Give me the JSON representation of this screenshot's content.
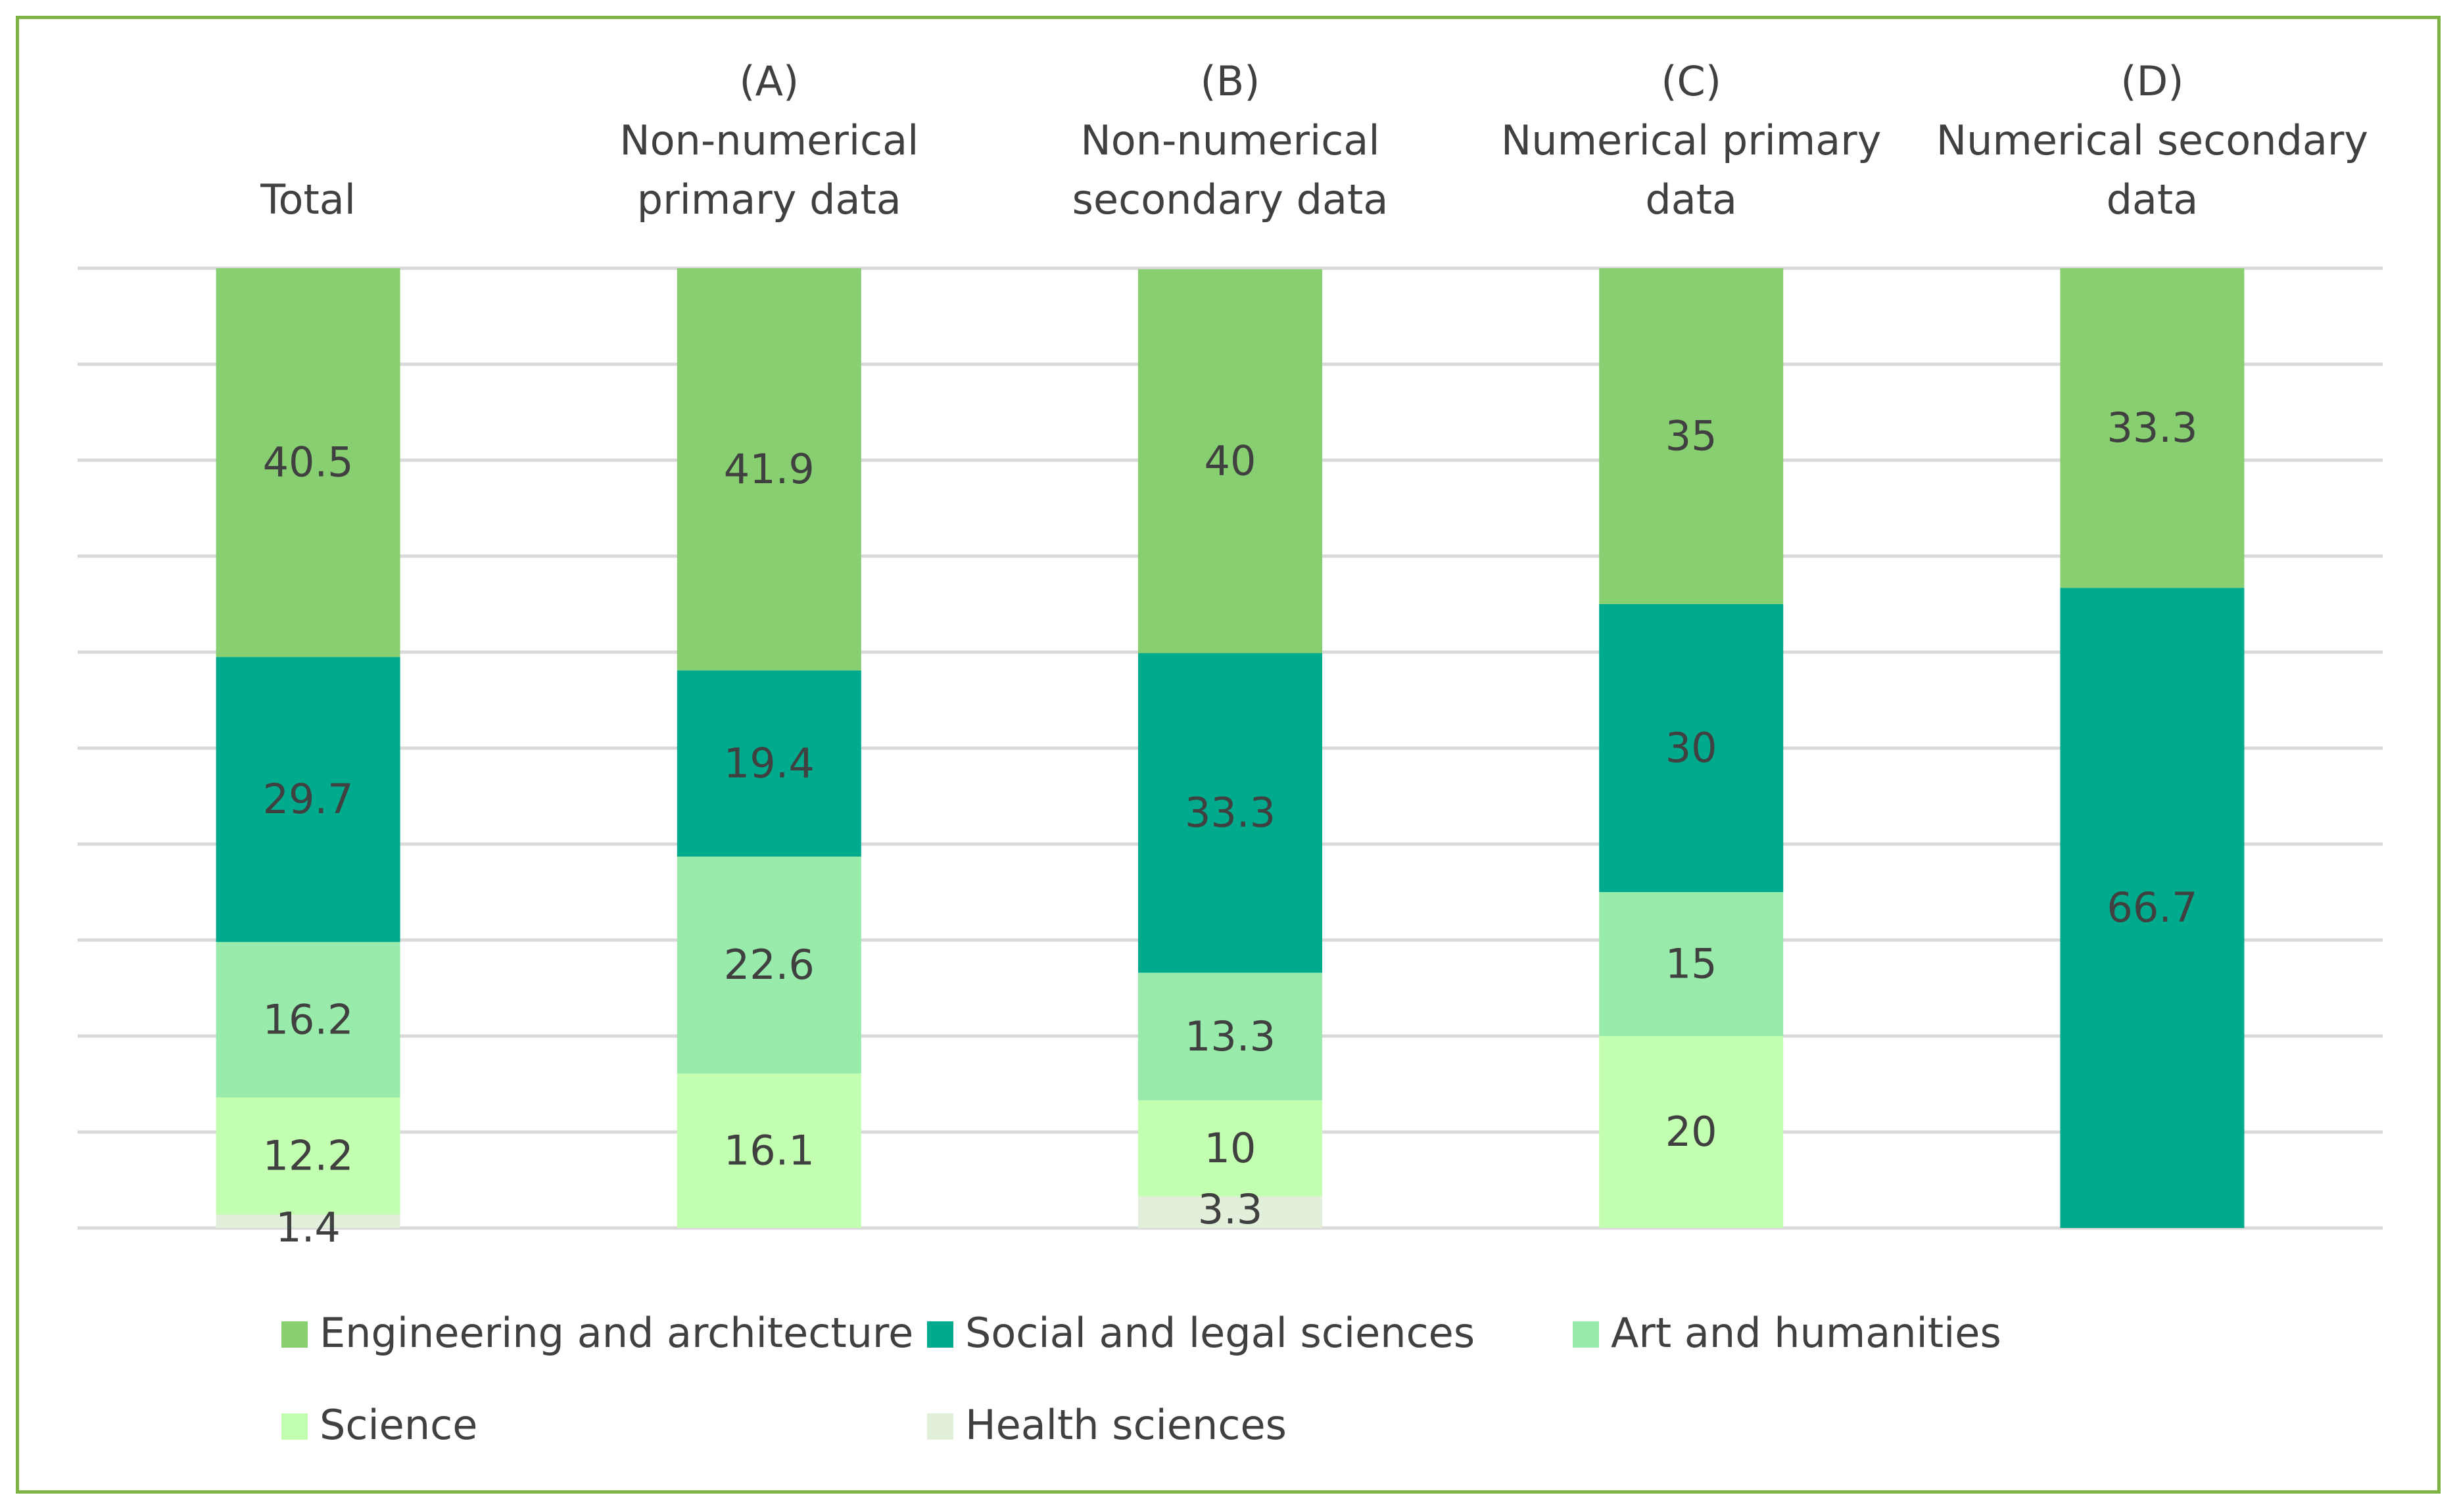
{
  "chart_data": {
    "type": "bar",
    "stacked": true,
    "orientation": "vertical",
    "legend_position": "bottom",
    "grid": true,
    "ylim": [
      0,
      100
    ],
    "categories": [
      [
        "Total"
      ],
      [
        "(A)",
        "Non-numerical",
        "primary data"
      ],
      [
        "(B)",
        "Non-numerical",
        "secondary data"
      ],
      [
        "(C)",
        "Numerical primary",
        "data"
      ],
      [
        "(D)",
        "Numerical secondary",
        "data"
      ]
    ],
    "series": [
      {
        "name": "Health sciences",
        "color": "#e2efda",
        "values": [
          1.4,
          0,
          3.3,
          0,
          0
        ],
        "labels": [
          "1.4",
          "",
          "3.3",
          "",
          ""
        ]
      },
      {
        "name": "Science",
        "color": "#c3ffb0",
        "values": [
          12.2,
          16.1,
          10,
          20,
          0
        ],
        "labels": [
          "12.2",
          "16.1",
          "10",
          "20",
          ""
        ]
      },
      {
        "name": "Art and humanities",
        "color": "#98ebaa",
        "values": [
          16.2,
          22.6,
          13.3,
          15,
          0
        ],
        "labels": [
          "16.2",
          "22.6",
          "13.3",
          "15",
          ""
        ]
      },
      {
        "name": "Social and legal sciences",
        "color": "#00aa8d",
        "values": [
          29.7,
          19.4,
          33.3,
          30,
          66.7
        ],
        "labels": [
          "29.7",
          "19.4",
          "33.3",
          "30",
          "66.7"
        ]
      },
      {
        "name": "Engineering and architecture",
        "color": "#87cf70",
        "values": [
          40.5,
          41.9,
          40,
          35,
          33.3
        ],
        "labels": [
          "40.5",
          "41.9",
          "40",
          "35",
          "33.3"
        ]
      }
    ],
    "legend_order": [
      4,
      3,
      2,
      1,
      0
    ]
  }
}
